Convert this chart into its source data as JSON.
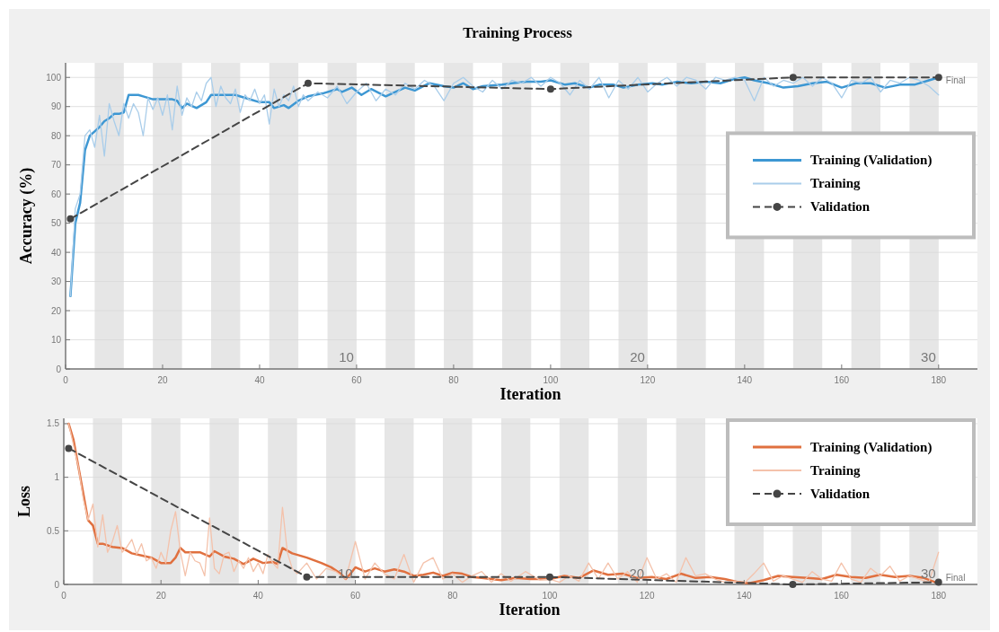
{
  "chart_data": [
    {
      "type": "line",
      "title": "Training Process",
      "xlabel": "Iteration",
      "ylabel": "Accuracy (%)",
      "xlim": [
        0,
        188
      ],
      "ylim": [
        0,
        105
      ],
      "xticks": [
        0,
        20,
        40,
        60,
        80,
        100,
        120,
        140,
        160,
        180
      ],
      "yticks": [
        0,
        10,
        20,
        30,
        40,
        50,
        60,
        70,
        80,
        90,
        100
      ],
      "grid": "y",
      "legend": "right",
      "bands": [
        {
          "axis": "x",
          "from": 6,
          "to": 12,
          "color": "#e6e6e6"
        },
        {
          "axis": "x",
          "from": 18,
          "to": 24,
          "color": "#e6e6e6"
        },
        {
          "axis": "x",
          "from": 30,
          "to": 36,
          "color": "#e6e6e6"
        },
        {
          "axis": "x",
          "from": 42,
          "to": 48,
          "color": "#e6e6e6"
        },
        {
          "axis": "x",
          "from": 54,
          "to": 60,
          "color": "#e6e6e6"
        },
        {
          "axis": "x",
          "from": 66,
          "to": 72,
          "color": "#e6e6e6"
        },
        {
          "axis": "x",
          "from": 78,
          "to": 84,
          "color": "#e6e6e6"
        },
        {
          "axis": "x",
          "from": 90,
          "to": 96,
          "color": "#e6e6e6"
        },
        {
          "axis": "x",
          "from": 102,
          "to": 108,
          "color": "#e6e6e6"
        },
        {
          "axis": "x",
          "from": 114,
          "to": 120,
          "color": "#e6e6e6"
        },
        {
          "axis": "x",
          "from": 126,
          "to": 132,
          "color": "#e6e6e6"
        },
        {
          "axis": "x",
          "from": 138,
          "to": 144,
          "color": "#e6e6e6"
        },
        {
          "axis": "x",
          "from": 150,
          "to": 156,
          "color": "#e6e6e6"
        },
        {
          "axis": "x",
          "from": 162,
          "to": 168,
          "color": "#e6e6e6"
        },
        {
          "axis": "x",
          "from": 174,
          "to": 180,
          "color": "#e6e6e6"
        }
      ],
      "annotations": [
        {
          "text": "10",
          "x": 60,
          "y": 2
        },
        {
          "text": "20",
          "x": 120,
          "y": 2
        },
        {
          "text": "30",
          "x": 180,
          "y": 2
        },
        {
          "text": "Final",
          "x": 180,
          "y": 99
        }
      ],
      "series": [
        {
          "name": "Training (Validation)",
          "color": "#3d97d3",
          "line_style": "solid",
          "marker": "none",
          "x": [
            1,
            2,
            3,
            4,
            5,
            6,
            7,
            8,
            9,
            10,
            11,
            12,
            13,
            14,
            15,
            16,
            18,
            20,
            22,
            23,
            24,
            25,
            27,
            29,
            30,
            32,
            35,
            37,
            40,
            42,
            43,
            45,
            46,
            48,
            50,
            53,
            56,
            57,
            59,
            61,
            63,
            66,
            68,
            70,
            72,
            75,
            78,
            80,
            82,
            84,
            86,
            90,
            92,
            95,
            98,
            100,
            103,
            105,
            108,
            110,
            113,
            115,
            118,
            121,
            123,
            126,
            129,
            132,
            135,
            138,
            140,
            142,
            145,
            148,
            151,
            154,
            157,
            160,
            163,
            166,
            169,
            172,
            175,
            178,
            180
          ],
          "values": [
            25,
            50,
            57,
            75,
            80,
            81.5,
            83,
            85,
            86,
            87.5,
            87.5,
            88,
            94,
            94,
            94,
            93.5,
            92.5,
            92.5,
            92.5,
            92,
            89.5,
            91,
            89.5,
            91.5,
            94,
            94,
            94,
            93,
            91.5,
            91.5,
            89.5,
            90.5,
            89.5,
            92,
            93.5,
            94.5,
            96,
            95,
            96.5,
            94,
            96,
            93.5,
            95,
            96.5,
            95.5,
            98,
            97,
            96.5,
            98,
            96,
            97,
            97.5,
            98,
            98.5,
            98.5,
            99,
            97.5,
            98,
            96.5,
            97.5,
            97.5,
            96.5,
            97.5,
            98,
            97.5,
            98.5,
            98,
            98.5,
            98,
            99.5,
            100,
            99,
            98,
            96.5,
            97,
            98,
            98.5,
            96.5,
            98,
            98,
            96.5,
            97.5,
            97.5,
            99,
            100
          ]
        },
        {
          "name": "Training",
          "color": "#a9cdea",
          "line_style": "solid",
          "marker": "none",
          "x": [
            1,
            2,
            3,
            4,
            5,
            6,
            7,
            8,
            9,
            10,
            11,
            12,
            13,
            14,
            15,
            16,
            17,
            18,
            19,
            20,
            21,
            22,
            23,
            24,
            25,
            26,
            27,
            28,
            29,
            30,
            31,
            32,
            33,
            34,
            35,
            36,
            37,
            38,
            39,
            40,
            41,
            42,
            43,
            44,
            45,
            46,
            47,
            48,
            49,
            50,
            52,
            54,
            56,
            58,
            60,
            62,
            64,
            66,
            68,
            70,
            72,
            74,
            76,
            78,
            80,
            82,
            84,
            86,
            88,
            90,
            92,
            94,
            96,
            98,
            100,
            102,
            104,
            106,
            108,
            110,
            112,
            114,
            116,
            118,
            120,
            122,
            124,
            126,
            128,
            130,
            132,
            134,
            136,
            138,
            140,
            142,
            144,
            146,
            148,
            150,
            152,
            154,
            156,
            158,
            160,
            162,
            164,
            166,
            168,
            170,
            172,
            174,
            176,
            178,
            180
          ],
          "values": [
            25,
            55,
            60,
            80,
            82,
            76,
            87,
            73,
            91,
            85,
            80,
            91,
            86,
            91,
            88,
            80,
            93,
            89,
            93,
            87,
            94,
            82,
            97,
            87,
            93,
            90,
            95,
            92,
            98,
            100,
            90,
            97,
            93,
            91,
            96,
            88,
            94,
            92,
            96,
            91,
            94,
            84,
            96,
            90,
            94,
            92,
            97,
            90,
            94,
            92,
            95,
            93,
            97,
            91,
            95,
            98,
            92,
            96,
            94,
            98,
            96,
            99,
            97,
            92,
            98,
            100,
            97,
            95,
            99,
            96,
            99,
            98,
            100,
            97,
            100,
            98,
            94,
            99,
            96,
            100,
            93,
            99,
            96,
            100,
            95,
            98,
            100,
            97,
            100,
            99,
            96,
            100,
            99,
            100,
            99,
            92,
            100,
            97,
            99,
            98,
            100,
            97,
            100,
            98,
            93,
            99,
            98,
            100,
            95,
            99,
            98,
            100,
            99,
            97,
            94
          ]
        },
        {
          "name": "Validation",
          "color": "#454545",
          "line_style": "dashed",
          "marker": "circle",
          "x": [
            1,
            50,
            100,
            150,
            180
          ],
          "values": [
            51.5,
            98,
            96,
            100,
            100
          ]
        }
      ]
    },
    {
      "type": "line",
      "xlabel": "Iteration",
      "ylabel": "Loss",
      "xlim": [
        0,
        188
      ],
      "ylim": [
        0,
        1.55
      ],
      "xticks": [
        0,
        20,
        40,
        60,
        80,
        100,
        120,
        140,
        160,
        180
      ],
      "yticks": [
        0,
        0.5,
        1,
        1.5
      ],
      "grid": "y",
      "legend": "top right",
      "bands": [
        {
          "axis": "x",
          "from": 6,
          "to": 12,
          "color": "#e6e6e6"
        },
        {
          "axis": "x",
          "from": 18,
          "to": 24,
          "color": "#e6e6e6"
        },
        {
          "axis": "x",
          "from": 30,
          "to": 36,
          "color": "#e6e6e6"
        },
        {
          "axis": "x",
          "from": 42,
          "to": 48,
          "color": "#e6e6e6"
        },
        {
          "axis": "x",
          "from": 54,
          "to": 60,
          "color": "#e6e6e6"
        },
        {
          "axis": "x",
          "from": 66,
          "to": 72,
          "color": "#e6e6e6"
        },
        {
          "axis": "x",
          "from": 78,
          "to": 84,
          "color": "#e6e6e6"
        },
        {
          "axis": "x",
          "from": 90,
          "to": 96,
          "color": "#e6e6e6"
        },
        {
          "axis": "x",
          "from": 102,
          "to": 108,
          "color": "#e6e6e6"
        },
        {
          "axis": "x",
          "from": 114,
          "to": 120,
          "color": "#e6e6e6"
        },
        {
          "axis": "x",
          "from": 126,
          "to": 132,
          "color": "#e6e6e6"
        },
        {
          "axis": "x",
          "from": 138,
          "to": 144,
          "color": "#e6e6e6"
        },
        {
          "axis": "x",
          "from": 150,
          "to": 156,
          "color": "#e6e6e6"
        },
        {
          "axis": "x",
          "from": 162,
          "to": 168,
          "color": "#e6e6e6"
        },
        {
          "axis": "x",
          "from": 174,
          "to": 180,
          "color": "#e6e6e6"
        }
      ],
      "annotations": [
        {
          "text": "10",
          "x": 60,
          "y": 0.04
        },
        {
          "text": "20",
          "x": 120,
          "y": 0.04
        },
        {
          "text": "30",
          "x": 180,
          "y": 0.04
        },
        {
          "text": "Final",
          "x": 180,
          "y": 0.07
        }
      ],
      "series": [
        {
          "name": "Training (Validation)",
          "color": "#e0703f",
          "line_style": "solid",
          "marker": "none",
          "x": [
            1,
            2,
            3,
            4,
            5,
            6,
            7,
            8,
            10,
            12,
            14,
            16,
            18,
            20,
            22,
            23,
            24,
            25,
            28,
            30,
            31,
            33,
            35,
            37,
            39,
            41,
            43,
            44,
            45,
            47,
            50,
            53,
            55,
            57,
            58,
            59,
            60,
            62,
            64,
            66,
            68,
            70,
            72,
            74,
            76,
            78,
            80,
            82,
            84,
            86,
            88,
            90,
            93,
            96,
            100,
            103,
            106,
            109,
            112,
            115,
            118,
            121,
            124,
            127,
            130,
            133,
            136,
            139,
            141,
            144,
            147,
            150,
            153,
            156,
            159,
            162,
            165,
            168,
            171,
            174,
            177,
            180
          ],
          "values": [
            1.5,
            1.35,
            1.1,
            0.85,
            0.6,
            0.55,
            0.38,
            0.38,
            0.35,
            0.34,
            0.29,
            0.27,
            0.25,
            0.2,
            0.2,
            0.25,
            0.34,
            0.3,
            0.3,
            0.26,
            0.31,
            0.26,
            0.24,
            0.19,
            0.24,
            0.2,
            0.21,
            0.19,
            0.34,
            0.29,
            0.25,
            0.2,
            0.16,
            0.1,
            0.05,
            0.1,
            0.16,
            0.12,
            0.15,
            0.12,
            0.14,
            0.12,
            0.08,
            0.09,
            0.11,
            0.08,
            0.11,
            0.1,
            0.07,
            0.06,
            0.05,
            0.04,
            0.06,
            0.05,
            0.05,
            0.08,
            0.06,
            0.13,
            0.09,
            0.1,
            0.06,
            0.07,
            0.05,
            0.1,
            0.06,
            0.07,
            0.05,
            0.02,
            0.01,
            0.04,
            0.08,
            0.07,
            0.06,
            0.05,
            0.09,
            0.07,
            0.06,
            0.09,
            0.07,
            0.08,
            0.06,
            0.01
          ]
        },
        {
          "name": "Training",
          "color": "#f4c2ab",
          "line_style": "solid",
          "marker": "none",
          "x": [
            1,
            2,
            3,
            4,
            5,
            6,
            7,
            8,
            9,
            10,
            11,
            12,
            13,
            14,
            15,
            16,
            17,
            18,
            19,
            20,
            21,
            22,
            23,
            24,
            25,
            26,
            27,
            28,
            29,
            30,
            31,
            32,
            33,
            34,
            35,
            36,
            37,
            38,
            39,
            40,
            41,
            42,
            43,
            44,
            45,
            46,
            47,
            48,
            50,
            52,
            54,
            56,
            58,
            60,
            62,
            64,
            66,
            68,
            70,
            72,
            74,
            76,
            78,
            80,
            82,
            84,
            86,
            88,
            90,
            92,
            95,
            98,
            100,
            102,
            104,
            106,
            108,
            110,
            112,
            114,
            116,
            118,
            120,
            122,
            124,
            126,
            128,
            130,
            132,
            134,
            136,
            138,
            140,
            142,
            144,
            146,
            148,
            150,
            152,
            154,
            156,
            158,
            160,
            162,
            164,
            166,
            168,
            170,
            172,
            174,
            176,
            178,
            180
          ],
          "values": [
            1.5,
            1.3,
            1.1,
            0.8,
            0.6,
            0.75,
            0.35,
            0.65,
            0.3,
            0.4,
            0.55,
            0.3,
            0.35,
            0.42,
            0.28,
            0.38,
            0.22,
            0.25,
            0.15,
            0.3,
            0.2,
            0.5,
            0.68,
            0.3,
            0.08,
            0.3,
            0.22,
            0.2,
            0.08,
            0.62,
            0.15,
            0.1,
            0.28,
            0.3,
            0.12,
            0.22,
            0.15,
            0.25,
            0.12,
            0.2,
            0.1,
            0.28,
            0.2,
            0.15,
            0.72,
            0.3,
            0.15,
            0.1,
            0.2,
            0.05,
            0.15,
            0.12,
            0.05,
            0.4,
            0.05,
            0.2,
            0.1,
            0.05,
            0.28,
            0.02,
            0.2,
            0.25,
            0.05,
            0.1,
            0.02,
            0.08,
            0.12,
            0.02,
            0.1,
            0.03,
            0.12,
            0.04,
            0.05,
            0.02,
            0.08,
            0.03,
            0.2,
            0.05,
            0.2,
            0.05,
            0.12,
            0.02,
            0.25,
            0.05,
            0.1,
            0.02,
            0.25,
            0.08,
            0.1,
            0.05,
            0.02,
            0.03,
            0.01,
            0.1,
            0.2,
            0.03,
            0.08,
            0.05,
            0.02,
            0.12,
            0.05,
            0.03,
            0.2,
            0.05,
            0.02,
            0.15,
            0.08,
            0.17,
            0.03,
            0.08,
            0.05,
            0.02,
            0.3
          ]
        },
        {
          "name": "Validation",
          "color": "#454545",
          "line_style": "dashed",
          "marker": "circle",
          "x": [
            1,
            50,
            100,
            150,
            180
          ],
          "values": [
            1.27,
            0.07,
            0.07,
            0.0,
            0.02
          ]
        }
      ]
    }
  ]
}
